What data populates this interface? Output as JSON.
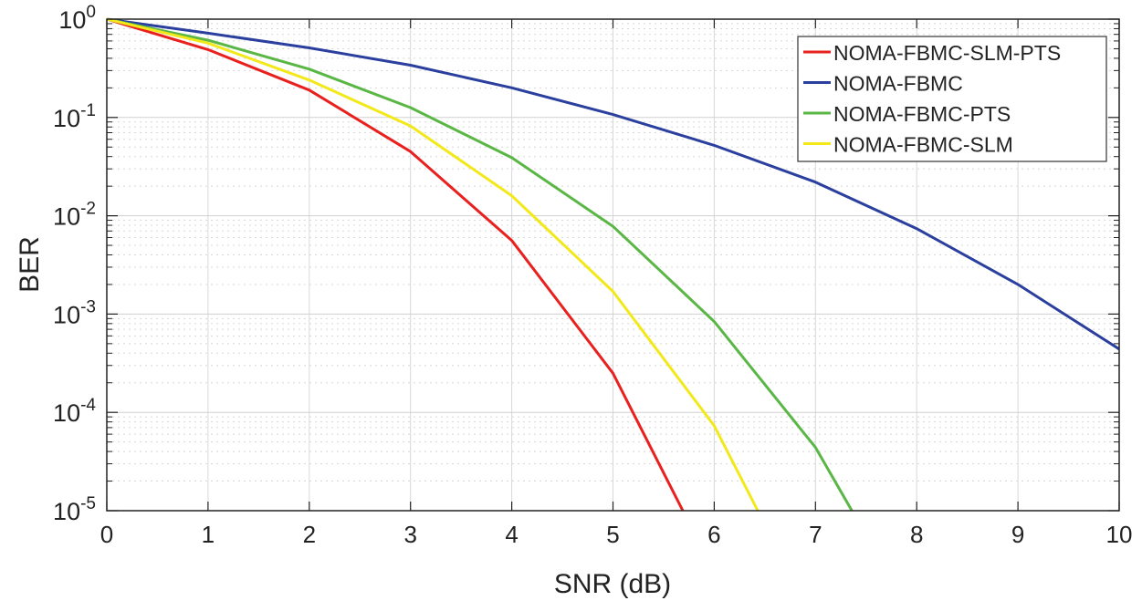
{
  "chart_data": {
    "type": "line",
    "title": "",
    "xlabel": "SNR (dB)",
    "ylabel": "BER",
    "xlim": [
      0,
      10
    ],
    "ylim": [
      1e-05,
      1
    ],
    "yscale": "log",
    "grid": true,
    "legend_position": "top-right",
    "x_ticks": [
      "0",
      "1",
      "2",
      "3",
      "4",
      "5",
      "6",
      "7",
      "8",
      "9",
      "10"
    ],
    "y_ticks": [
      {
        "base": "10",
        "exp": "0"
      },
      {
        "base": "10",
        "exp": "-1"
      },
      {
        "base": "10",
        "exp": "-2"
      },
      {
        "base": "10",
        "exp": "-3"
      },
      {
        "base": "10",
        "exp": "-4"
      },
      {
        "base": "10",
        "exp": "-5"
      }
    ],
    "series": [
      {
        "name": "NOMA-FBMC-SLM-PTS",
        "color": "#e8201e",
        "x": [
          0,
          1,
          2,
          3,
          4,
          5,
          5.69
        ],
        "y": [
          1,
          0.49,
          0.19,
          0.045,
          0.0056,
          0.00025,
          1e-05
        ]
      },
      {
        "name": "NOMA-FBMC",
        "color": "#2a3f9e",
        "x": [
          0,
          1,
          2,
          3,
          4,
          5,
          6,
          7,
          8,
          9,
          10
        ],
        "y": [
          1,
          0.72,
          0.51,
          0.34,
          0.2,
          0.107,
          0.052,
          0.022,
          0.0074,
          0.002,
          0.00044
        ]
      },
      {
        "name": "NOMA-FBMC-PTS",
        "color": "#5ab746",
        "x": [
          0,
          1,
          2,
          3,
          4,
          5,
          6,
          7,
          7.36
        ],
        "y": [
          1,
          0.61,
          0.31,
          0.126,
          0.039,
          0.0078,
          0.00084,
          4.4e-05,
          1e-05
        ]
      },
      {
        "name": "NOMA-FBMC-SLM",
        "color": "#f2e81a",
        "x": [
          0,
          1,
          2,
          3,
          4,
          5,
          6,
          6.43
        ],
        "y": [
          1,
          0.57,
          0.24,
          0.082,
          0.016,
          0.0017,
          7.3e-05,
          1e-05
        ]
      }
    ]
  }
}
